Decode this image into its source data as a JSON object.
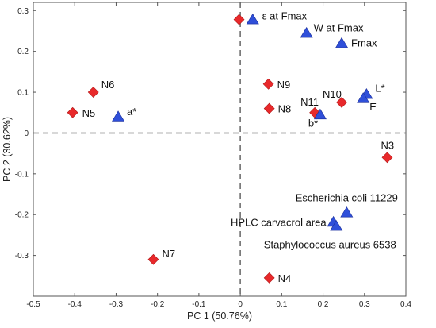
{
  "chart_data": {
    "type": "scatter",
    "title": "",
    "xlabel": "PC 1 (50.76%)",
    "ylabel": "PC 2 (30.62%)",
    "xlim": [
      -0.5,
      0.4
    ],
    "ylim": [
      -0.4,
      0.32
    ],
    "xticks": [
      -0.5,
      -0.4,
      -0.3,
      -0.2,
      -0.1,
      0,
      0.1,
      0.2,
      0.3,
      0.4
    ],
    "yticks": [
      -0.3,
      -0.2,
      -0.1,
      0,
      0.1,
      0.2,
      0.3
    ],
    "xtick_labels": [
      "-0.5",
      "-0.4",
      "-0.3",
      "-0.2",
      "-0.1",
      "0",
      "0.1",
      "0.2",
      "0.3",
      "0.4"
    ],
    "ytick_labels": [
      "-0.3",
      "-0.2",
      "-0.1",
      "0",
      "0.1",
      "0.2",
      "0.3"
    ],
    "grid": false,
    "reference_lines": "dashed lines at x = 0 and y = 0",
    "colors": {
      "samples": "#e8292b",
      "variables": "#2f4fd9"
    },
    "series": [
      {
        "marker": "diamond",
        "points": [
          {
            "label": "N3",
            "x": 0.355,
            "y": -0.06
          },
          {
            "label": "N4",
            "x": 0.07,
            "y": -0.355
          },
          {
            "label": "N5",
            "x": -0.405,
            "y": 0.05
          },
          {
            "label": "N6",
            "x": -0.355,
            "y": 0.1
          },
          {
            "label": "N7",
            "x": -0.21,
            "y": -0.31
          },
          {
            "label": "N8",
            "x": 0.07,
            "y": 0.06
          },
          {
            "label": "N9",
            "x": 0.068,
            "y": 0.12
          },
          {
            "label": "N10",
            "x": 0.245,
            "y": 0.075
          },
          {
            "label": "N11",
            "x": 0.18,
            "y": 0.05
          },
          {
            "label": "",
            "x": -0.003,
            "y": 0.278
          }
        ]
      },
      {
        "marker": "triangle",
        "points": [
          {
            "label": "a*",
            "x": -0.295,
            "y": 0.04
          },
          {
            "label": "b*",
            "x": 0.193,
            "y": 0.045
          },
          {
            "label": "L*",
            "x": 0.305,
            "y": 0.095
          },
          {
            "label": "E",
            "x": 0.297,
            "y": 0.085
          },
          {
            "label": "Fmax",
            "x": 0.245,
            "y": 0.22
          },
          {
            "label": "W at Fmax",
            "x": 0.16,
            "y": 0.245
          },
          {
            "label": "ε at Fmax",
            "x": 0.03,
            "y": 0.278
          },
          {
            "label": "Escherichia coli 11229",
            "x": 0.257,
            "y": -0.195
          },
          {
            "label": "HPLC carvacrol area",
            "x": 0.225,
            "y": -0.218
          },
          {
            "label": "Staphylococcus aureus 6538",
            "x": 0.232,
            "y": -0.228
          }
        ]
      }
    ]
  }
}
